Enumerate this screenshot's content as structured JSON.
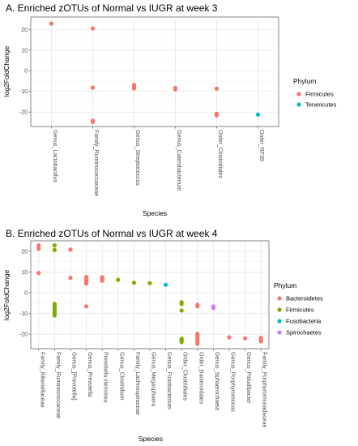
{
  "chart_data": [
    {
      "type": "scatter",
      "title": "A. Enriched zOTUs of Normal vs IUGR at week 3",
      "xlabel": "Species",
      "ylabel": "log2FoldChange",
      "ylim": [
        -27,
        26
      ],
      "yticks": [
        20,
        10,
        0,
        -10,
        -20
      ],
      "grid": true,
      "legend": {
        "title": "Phylum",
        "placement": "right"
      },
      "categories": [
        "Genus_Lactobacillus",
        "Family_Ruminococcaceae",
        "Genus_Streptococcus",
        "Genus_Catenibacterium",
        "Order_Clostridiales",
        "Order_RF39"
      ],
      "series": [
        {
          "name": "Firmicutes",
          "color": "#F8766D",
          "points": [
            {
              "x": "Genus_Lactobacillus",
              "y": 22.8
            },
            {
              "x": "Family_Ruminococcaceae",
              "y": 20.5
            },
            {
              "x": "Family_Ruminococcaceae",
              "y": -8.2
            },
            {
              "x": "Family_Ruminococcaceae",
              "y": -24.2
            },
            {
              "x": "Family_Ruminococcaceae",
              "y": -24.8
            },
            {
              "x": "Genus_Streptococcus",
              "y": -6.8
            },
            {
              "x": "Genus_Streptococcus",
              "y": -7.4
            },
            {
              "x": "Genus_Streptococcus",
              "y": -8.0
            },
            {
              "x": "Genus_Streptococcus",
              "y": -8.6
            },
            {
              "x": "Genus_Catenibacterium",
              "y": -8.3
            },
            {
              "x": "Genus_Catenibacterium",
              "y": -9.0
            },
            {
              "x": "Order_Clostridiales",
              "y": -8.7
            },
            {
              "x": "Order_Clostridiales",
              "y": -20.8
            },
            {
              "x": "Order_Clostridiales",
              "y": -21.6
            }
          ]
        },
        {
          "name": "Tenericutes",
          "color": "#00BFC4",
          "points": [
            {
              "x": "Order_RF39",
              "y": -21.2
            }
          ]
        }
      ]
    },
    {
      "type": "scatter",
      "title": "B. Enriched zOTUs of Normal vs IUGR at week 4",
      "xlabel": "Species",
      "ylabel": "log2FoldChange",
      "ylim": [
        -27,
        25
      ],
      "yticks": [
        20,
        10,
        0,
        -10,
        -20
      ],
      "grid": true,
      "legend": {
        "title": "Phylum",
        "placement": "right"
      },
      "categories": [
        "Family_Rikenellaceae",
        "Family_Ruminococcaceae",
        "Genus_[Prevotella]",
        "Genus_Prevotella",
        "Prevotella stercorea",
        "Genus_Clostridium",
        "Family_Lachnospiraceae",
        "Genus_Megasphaera",
        "Genus_Fusobacterium",
        "Order_Clostridiales",
        "Order_Bacteroidales",
        "Genus_Sphaerochaeta",
        "Genus_Porphyromonas",
        "Genus_Paludibacter",
        "Family_Porphyromonadaceae"
      ],
      "series": [
        {
          "name": "Bacteroidetes",
          "color": "#F8766D",
          "points": [
            {
              "x": "Family_Rikenellaceae",
              "y": 22.8
            },
            {
              "x": "Family_Rikenellaceae",
              "y": 21.2
            },
            {
              "x": "Family_Rikenellaceae",
              "y": 9.5
            },
            {
              "x": "Genus_[Prevotella]",
              "y": 20.8
            },
            {
              "x": "Genus_[Prevotella]",
              "y": 7.2
            },
            {
              "x": "Genus_Prevotella",
              "y": 7.6
            },
            {
              "x": "Genus_Prevotella",
              "y": 6.8
            },
            {
              "x": "Genus_Prevotella",
              "y": 6.0
            },
            {
              "x": "Genus_Prevotella",
              "y": 5.2
            },
            {
              "x": "Genus_Prevotella",
              "y": 4.4
            },
            {
              "x": "Genus_Prevotella",
              "y": -6.6
            },
            {
              "x": "Prevotella stercorea",
              "y": 7.4
            },
            {
              "x": "Prevotella stercorea",
              "y": 6.6
            },
            {
              "x": "Prevotella stercorea",
              "y": 5.8
            },
            {
              "x": "Order_Bacteroidales",
              "y": -5.8
            },
            {
              "x": "Order_Bacteroidales",
              "y": -6.6
            },
            {
              "x": "Order_Bacteroidales",
              "y": -19.8
            },
            {
              "x": "Order_Bacteroidales",
              "y": -20.6
            },
            {
              "x": "Order_Bacteroidales",
              "y": -21.4
            },
            {
              "x": "Order_Bacteroidales",
              "y": -22.2
            },
            {
              "x": "Order_Bacteroidales",
              "y": -23.0
            },
            {
              "x": "Order_Bacteroidales",
              "y": -23.8
            },
            {
              "x": "Order_Bacteroidales",
              "y": -24.6
            },
            {
              "x": "Genus_Porphyromonas",
              "y": -21.5
            },
            {
              "x": "Genus_Paludibacter",
              "y": -22.0
            },
            {
              "x": "Family_Porphyromonadaceae",
              "y": -21.8
            },
            {
              "x": "Family_Porphyromonadaceae",
              "y": -22.6
            },
            {
              "x": "Family_Porphyromonadaceae",
              "y": -23.4
            }
          ]
        },
        {
          "name": "Firmicutes",
          "color": "#7CAE00",
          "points": [
            {
              "x": "Family_Ruminococcaceae",
              "y": 22.8
            },
            {
              "x": "Family_Ruminococcaceae",
              "y": 20.6
            },
            {
              "x": "Family_Ruminococcaceae",
              "y": -5.4
            },
            {
              "x": "Family_Ruminococcaceae",
              "y": -6.2
            },
            {
              "x": "Family_Ruminococcaceae",
              "y": -7.0
            },
            {
              "x": "Family_Ruminococcaceae",
              "y": -7.8
            },
            {
              "x": "Family_Ruminococcaceae",
              "y": -8.6
            },
            {
              "x": "Family_Ruminococcaceae",
              "y": -9.4
            },
            {
              "x": "Family_Ruminococcaceae",
              "y": -10.2
            },
            {
              "x": "Family_Ruminococcaceae",
              "y": -11.0
            },
            {
              "x": "Genus_Clostridium",
              "y": 6.2
            },
            {
              "x": "Family_Lachnospiraceae",
              "y": 4.8
            },
            {
              "x": "Genus_Megasphaera",
              "y": 4.6
            },
            {
              "x": "Order_Clostridiales",
              "y": -4.6
            },
            {
              "x": "Order_Clostridiales",
              "y": -5.4
            },
            {
              "x": "Order_Clostridiales",
              "y": -8.6
            },
            {
              "x": "Order_Clostridiales",
              "y": -22.2
            },
            {
              "x": "Order_Clostridiales",
              "y": -23.0
            },
            {
              "x": "Order_Clostridiales",
              "y": -23.8
            }
          ]
        },
        {
          "name": "Fusobacteria",
          "color": "#00BFC4",
          "points": [
            {
              "x": "Genus_Fusobacterium",
              "y": 3.8
            }
          ]
        },
        {
          "name": "Spirochaetes",
          "color": "#C77CFF",
          "points": [
            {
              "x": "Genus_Sphaerochaeta",
              "y": -6.6
            },
            {
              "x": "Genus_Sphaerochaeta",
              "y": -7.4
            }
          ]
        }
      ]
    }
  ]
}
